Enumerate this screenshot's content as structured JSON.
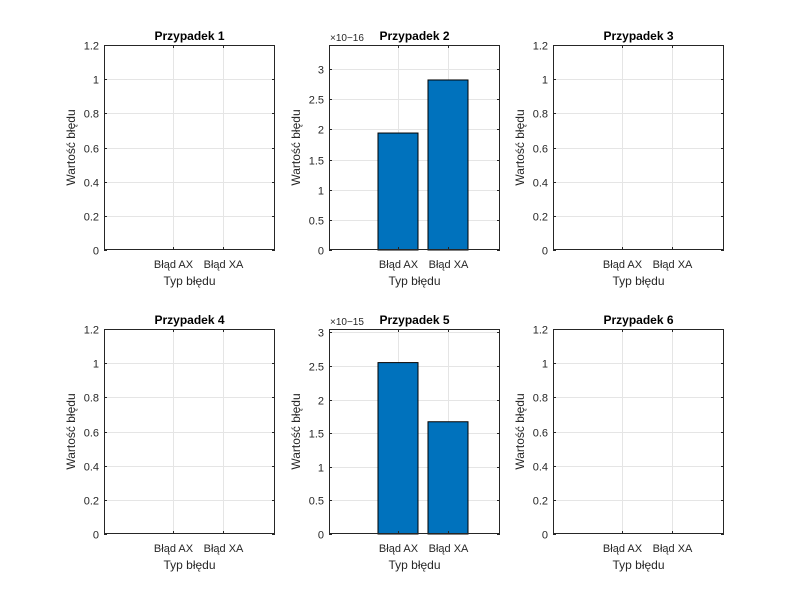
{
  "figure": {
    "background": "#ffffff",
    "axes_color": "#262626",
    "grid_color": "#e5e5e5"
  },
  "chart_data": [
    {
      "type": "bar",
      "title": "Przypadek 1",
      "xlabel": "Typ błędu",
      "ylabel": "Wartość błędu",
      "categories": [
        "Błąd AX",
        "Błąd XA"
      ],
      "values": [
        0,
        0
      ],
      "ylim": [
        0,
        1.2
      ],
      "yticks": [
        0,
        0.2,
        0.4,
        0.6,
        0.8,
        1,
        1.2
      ],
      "ytick_labels": [
        "0",
        "0.2",
        "0.4",
        "0.6",
        "0.8",
        "1",
        "1.2"
      ],
      "exponent_label": "",
      "grid": true,
      "bar_color": "#0072bd"
    },
    {
      "type": "bar",
      "title": "Przypadek 2",
      "xlabel": "Typ błędu",
      "ylabel": "Wartość błędu",
      "categories": [
        "Błąd AX",
        "Błąd XA"
      ],
      "values": [
        1.94e-16,
        2.82e-16
      ],
      "ylim": [
        0,
        3.4e-16
      ],
      "yticks": [
        0,
        5e-17,
        1e-16,
        1.5e-16,
        2e-16,
        2.5e-16,
        3e-16
      ],
      "ytick_labels": [
        "0",
        "0.5",
        "1",
        "1.5",
        "2",
        "2.5",
        "3"
      ],
      "exponent_label": "×10−16",
      "grid": true,
      "bar_color": "#0072bd"
    },
    {
      "type": "bar",
      "title": "Przypadek 3",
      "xlabel": "Typ błędu",
      "ylabel": "Wartość błędu",
      "categories": [
        "Błąd AX",
        "Błąd XA"
      ],
      "values": [
        0,
        0
      ],
      "ylim": [
        0,
        1.2
      ],
      "yticks": [
        0,
        0.2,
        0.4,
        0.6,
        0.8,
        1,
        1.2
      ],
      "ytick_labels": [
        "0",
        "0.2",
        "0.4",
        "0.6",
        "0.8",
        "1",
        "1.2"
      ],
      "exponent_label": "",
      "grid": true,
      "bar_color": "#0072bd"
    },
    {
      "type": "bar",
      "title": "Przypadek 4",
      "xlabel": "Typ błędu",
      "ylabel": "Wartość błędu",
      "categories": [
        "Błąd AX",
        "Błąd XA"
      ],
      "values": [
        0,
        0
      ],
      "ylim": [
        0,
        1.2
      ],
      "yticks": [
        0,
        0.2,
        0.4,
        0.6,
        0.8,
        1,
        1.2
      ],
      "ytick_labels": [
        "0",
        "0.2",
        "0.4",
        "0.6",
        "0.8",
        "1",
        "1.2"
      ],
      "exponent_label": "",
      "grid": true,
      "bar_color": "#0072bd"
    },
    {
      "type": "bar",
      "title": "Przypadek 5",
      "xlabel": "Typ błędu",
      "ylabel": "Wartość błędu",
      "categories": [
        "Błąd AX",
        "Błąd XA"
      ],
      "values": [
        2.55e-15,
        1.67e-15
      ],
      "ylim": [
        0,
        3.05e-15
      ],
      "yticks": [
        0,
        5e-16,
        1e-15,
        1.5e-15,
        2e-15,
        2.5e-15,
        3e-15
      ],
      "ytick_labels": [
        "0",
        "0.5",
        "1",
        "1.5",
        "2",
        "2.5",
        "3"
      ],
      "exponent_label": "×10−15",
      "grid": true,
      "bar_color": "#0072bd"
    },
    {
      "type": "bar",
      "title": "Przypadek 6",
      "xlabel": "Typ błędu",
      "ylabel": "Wartość błędu",
      "categories": [
        "Błąd AX",
        "Błąd XA"
      ],
      "values": [
        0,
        0
      ],
      "ylim": [
        0,
        1.2
      ],
      "yticks": [
        0,
        0.2,
        0.4,
        0.6,
        0.8,
        1,
        1.2
      ],
      "ytick_labels": [
        "0",
        "0.2",
        "0.4",
        "0.6",
        "0.8",
        "1",
        "1.2"
      ],
      "exponent_label": "",
      "grid": true,
      "bar_color": "#0072bd"
    }
  ]
}
